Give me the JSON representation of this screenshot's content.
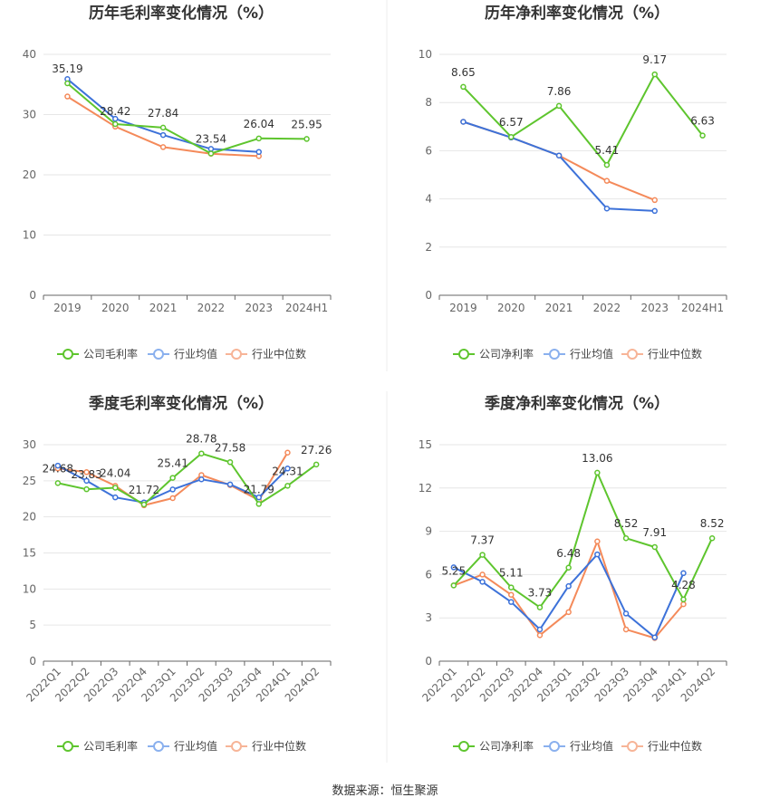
{
  "colors": {
    "company": "#5ec52e",
    "avg": "#3d72d9",
    "median": "#f48a5a"
  },
  "legend_marker_colors": {
    "company": "#5ec52e",
    "avg": "#8ab0ee",
    "median": "#f7b497"
  },
  "source": "数据来源：恒生聚源",
  "chart_data": [
    {
      "type": "line",
      "title": "历年毛利率变化情况（%）",
      "categories": [
        "2019",
        "2020",
        "2021",
        "2022",
        "2023",
        "2024H1"
      ],
      "ylim": [
        0,
        40
      ],
      "yticks": [
        0,
        10,
        20,
        30,
        40
      ],
      "rotate_labels": false,
      "series": [
        {
          "key": "company",
          "name": "公司毛利率",
          "values": [
            35.19,
            28.42,
            27.84,
            23.54,
            26.04,
            25.95
          ],
          "labels": [
            "35.19",
            "28.42",
            "27.84",
            "23.54",
            "26.04",
            "25.95"
          ]
        },
        {
          "key": "avg",
          "name": "行业均值",
          "values": [
            35.9,
            29.3,
            26.6,
            24.3,
            23.8,
            null
          ]
        },
        {
          "key": "median",
          "name": "行业中位数",
          "values": [
            33.0,
            28.0,
            24.6,
            23.5,
            23.1,
            null
          ]
        }
      ]
    },
    {
      "type": "line",
      "title": "历年净利率变化情况（%）",
      "categories": [
        "2019",
        "2020",
        "2021",
        "2022",
        "2023",
        "2024H1"
      ],
      "ylim": [
        0,
        10
      ],
      "yticks": [
        0,
        2,
        4,
        6,
        8,
        10
      ],
      "rotate_labels": false,
      "series": [
        {
          "key": "company",
          "name": "公司净利率",
          "values": [
            8.65,
            6.57,
            7.86,
            5.41,
            9.17,
            6.63
          ],
          "labels": [
            "8.65",
            "6.57",
            "7.86",
            "5.41",
            "9.17",
            "6.63"
          ]
        },
        {
          "key": "avg",
          "name": "行业均值",
          "values": [
            7.2,
            6.55,
            5.8,
            3.6,
            3.5,
            null
          ]
        },
        {
          "key": "median",
          "name": "行业中位数",
          "values": [
            7.2,
            6.55,
            5.8,
            4.75,
            3.95,
            null
          ]
        }
      ]
    },
    {
      "type": "line",
      "title": "季度毛利率变化情况（%）",
      "categories": [
        "2022Q1",
        "2022Q2",
        "2022Q3",
        "2022Q4",
        "2023Q1",
        "2023Q2",
        "2023Q3",
        "2023Q4",
        "2024Q1",
        "2024Q2"
      ],
      "ylim": [
        0,
        30
      ],
      "yticks": [
        0,
        5,
        10,
        15,
        20,
        25,
        30
      ],
      "rotate_labels": true,
      "series": [
        {
          "key": "company",
          "name": "公司毛利率",
          "values": [
            24.68,
            23.83,
            24.04,
            21.72,
            25.41,
            28.78,
            27.58,
            21.79,
            24.31,
            27.26
          ],
          "labels": [
            "24.68",
            "23.83",
            "24.04",
            "21.72",
            "25.41",
            "28.78",
            "27.58",
            "21.79",
            "24.31",
            "27.26"
          ]
        },
        {
          "key": "avg",
          "name": "行业均值",
          "values": [
            27.1,
            25.0,
            22.7,
            22.0,
            23.8,
            25.2,
            24.5,
            22.7,
            26.7,
            null
          ]
        },
        {
          "key": "median",
          "name": "行业中位数",
          "values": [
            26.7,
            26.2,
            24.3,
            21.6,
            22.6,
            25.8,
            24.4,
            22.3,
            28.9,
            null
          ]
        }
      ]
    },
    {
      "type": "line",
      "title": "季度净利率变化情况（%）",
      "categories": [
        "2022Q1",
        "2022Q2",
        "2022Q3",
        "2022Q4",
        "2023Q1",
        "2023Q2",
        "2023Q3",
        "2023Q4",
        "2024Q1",
        "2024Q2"
      ],
      "ylim": [
        0,
        15
      ],
      "yticks": [
        0,
        3,
        6,
        9,
        12,
        15
      ],
      "rotate_labels": true,
      "series": [
        {
          "key": "company",
          "name": "公司净利率",
          "values": [
            5.25,
            7.37,
            5.11,
            3.73,
            6.48,
            13.06,
            8.52,
            7.91,
            4.28,
            8.52
          ],
          "labels": [
            "5.25",
            "7.37",
            "5.11",
            "3.73",
            "6.48",
            "13.06",
            "8.52",
            "7.91",
            "4.28",
            "8.52"
          ]
        },
        {
          "key": "avg",
          "name": "行业均值",
          "values": [
            6.5,
            5.5,
            4.1,
            2.2,
            5.2,
            7.4,
            3.3,
            1.65,
            6.1,
            null
          ]
        },
        {
          "key": "median",
          "name": "行业中位数",
          "values": [
            5.25,
            6.0,
            4.6,
            1.8,
            3.4,
            8.3,
            2.2,
            1.6,
            3.95,
            null
          ]
        }
      ]
    }
  ]
}
